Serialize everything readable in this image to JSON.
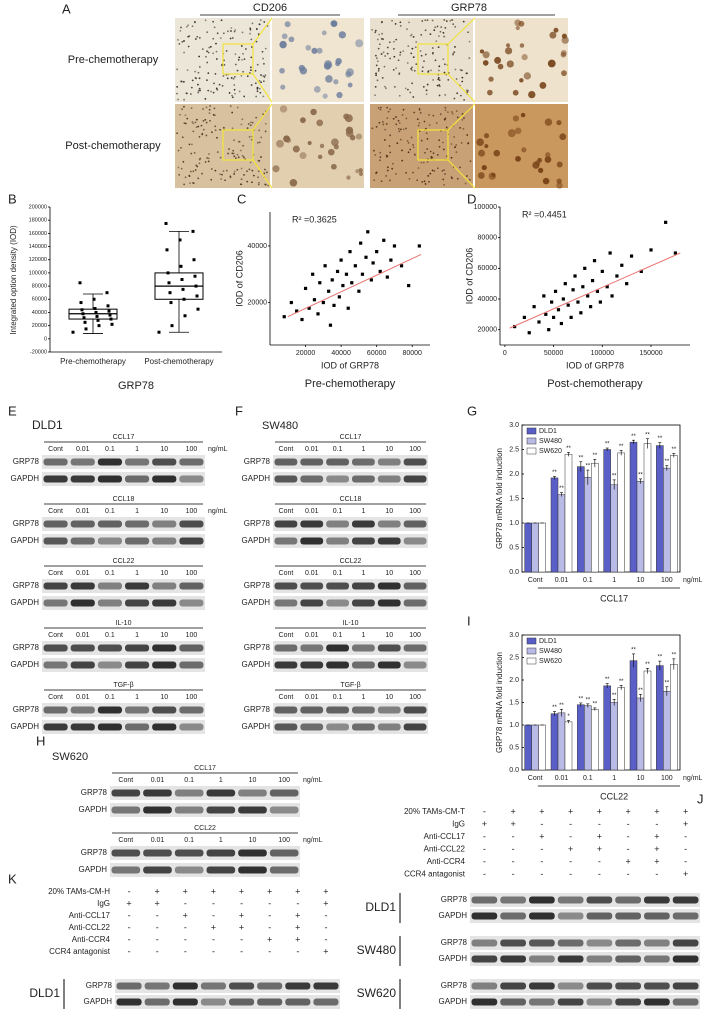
{
  "panel_labels": [
    "A",
    "B",
    "C",
    "D",
    "E",
    "F",
    "G",
    "H",
    "I",
    "J",
    "K"
  ],
  "panel_a": {
    "columns": [
      "CD206",
      "GRP78"
    ],
    "rows": [
      "Pre-chemotherapy",
      "Post-chemotherapy"
    ]
  },
  "chart_data": [
    {
      "type": "box",
      "categories": [
        "Pre-chemotherapy",
        "Post-chemotherapy"
      ],
      "x_label": "GRP78",
      "y_label": "Integrated option density (IOD)",
      "ylim": [
        -20000,
        200000
      ],
      "yticks": [
        -20000,
        0,
        20000,
        40000,
        60000,
        80000,
        100000,
        120000,
        140000,
        160000,
        180000,
        200000
      ],
      "color": "#000000",
      "boxes": [
        {
          "min": 8000,
          "q1": 30000,
          "median": 38000,
          "q3": 45000,
          "max": 68000
        },
        {
          "min": 10000,
          "q1": 60000,
          "median": 80000,
          "q3": 100000,
          "max": 163000
        }
      ],
      "points": [
        [
          10000,
          15000,
          20000,
          22000,
          25000,
          28000,
          30000,
          32000,
          34000,
          36000,
          38000,
          40000,
          42000,
          44000,
          46000,
          50000,
          55000,
          60000,
          70000,
          85000
        ],
        [
          10000,
          20000,
          35000,
          45000,
          55000,
          60000,
          65000,
          70000,
          75000,
          80000,
          85000,
          90000,
          95000,
          100000,
          110000,
          120000,
          135000,
          150000,
          163000,
          175000
        ]
      ]
    },
    {
      "type": "scatter",
      "x_label": "IOD of GRP78",
      "y_label": "IOD of CD206",
      "subtitle": "Pre-chemotherapy",
      "annotation": "R² =0.3625",
      "xlim": [
        0,
        90000
      ],
      "ylim": [
        5000,
        52000
      ],
      "xticks": [
        20000,
        40000,
        60000,
        80000
      ],
      "yticks": [
        20000,
        40000
      ],
      "color": "#000000",
      "x": [
        8000,
        12000,
        15000,
        18000,
        20000,
        22000,
        24000,
        25000,
        27000,
        28000,
        30000,
        31000,
        33000,
        34000,
        35000,
        36000,
        38000,
        39000,
        40000,
        41000,
        43000,
        44000,
        45000,
        46000,
        48000,
        50000,
        51000,
        52000,
        54000,
        55000,
        57000,
        58000,
        60000,
        62000,
        64000,
        66000,
        68000,
        70000,
        74000,
        78000,
        84000
      ],
      "y": [
        15000,
        20000,
        17000,
        14000,
        25000,
        18000,
        30000,
        21000,
        16000,
        27000,
        20000,
        33000,
        24000,
        12000,
        28000,
        19000,
        31000,
        22000,
        35000,
        26000,
        30000,
        18000,
        38000,
        27000,
        33000,
        24000,
        41000,
        30000,
        36000,
        45000,
        28000,
        34000,
        38000,
        31000,
        42000,
        29000,
        35000,
        40000,
        33000,
        26000,
        40000
      ],
      "trendline": {
        "x": [
          10000,
          85000
        ],
        "y": [
          15000,
          37000
        ],
        "color": "#e8736f"
      }
    },
    {
      "type": "scatter",
      "x_label": "IOD of GRP78",
      "y_label": "IOD of CD206",
      "subtitle": "Post-chemotherapy",
      "annotation": "R² =0.4451",
      "xlim": [
        -5000,
        190000
      ],
      "ylim": [
        10000,
        100000
      ],
      "xticks": [
        0,
        50000,
        100000,
        150000
      ],
      "yticks": [
        20000,
        40000,
        60000,
        80000,
        100000
      ],
      "color": "#000000",
      "x": [
        10000,
        20000,
        25000,
        30000,
        35000,
        40000,
        42000,
        45000,
        48000,
        50000,
        52000,
        55000,
        58000,
        60000,
        62000,
        65000,
        68000,
        70000,
        72000,
        75000,
        78000,
        80000,
        82000,
        85000,
        88000,
        90000,
        92000,
        95000,
        98000,
        100000,
        105000,
        108000,
        110000,
        115000,
        120000,
        125000,
        130000,
        140000,
        150000,
        165000,
        175000
      ],
      "y": [
        22000,
        28000,
        18000,
        35000,
        25000,
        42000,
        30000,
        20000,
        38000,
        28000,
        45000,
        33000,
        24000,
        40000,
        50000,
        36000,
        28000,
        46000,
        55000,
        38000,
        31000,
        48000,
        60000,
        42000,
        35000,
        52000,
        65000,
        45000,
        38000,
        58000,
        48000,
        70000,
        42000,
        55000,
        62000,
        50000,
        68000,
        58000,
        72000,
        90000,
        70000
      ],
      "trendline": {
        "x": [
          5000,
          180000
        ],
        "y": [
          21000,
          70000
        ],
        "color": "#e8736f"
      }
    },
    {
      "type": "grouped_bar",
      "y_label": "GRP78 mRNA fold induction",
      "x_label": "CCL17",
      "unit": "ng/mL",
      "legend": "upper left",
      "categories": [
        "Cont",
        "0.01",
        "0.1",
        "1",
        "10",
        "100"
      ],
      "ylim": [
        0,
        3
      ],
      "yticks": [
        {
          "value": 0,
          "label": "0.0"
        },
        0.5,
        {
          "value": 1,
          "label": "1.0"
        },
        1.5,
        {
          "value": 2,
          "label": "2.0"
        },
        2.5,
        {
          "value": 3,
          "label": "3.0"
        }
      ],
      "series": [
        {
          "name": "DLD1",
          "color": "#5a5fc8",
          "values": [
            1,
            1.92,
            2.15,
            2.5,
            2.65,
            2.58
          ],
          "errors": [
            0,
            0.03,
            0.1,
            0.03,
            0.04,
            0.06
          ],
          "significance": [
            null,
            "**",
            "**",
            "**",
            "**",
            "**"
          ]
        },
        {
          "name": "SW480",
          "color": "#b9bbe6",
          "values": [
            1,
            1.58,
            1.93,
            1.78,
            1.85,
            2.12
          ],
          "errors": [
            0,
            0.04,
            0.15,
            0.1,
            0.05,
            0.05
          ],
          "significance": [
            null,
            "**",
            "**",
            "**",
            "**",
            "**"
          ]
        },
        {
          "name": "SW620",
          "color": "#ffffff",
          "values": [
            1,
            2.4,
            2.22,
            2.43,
            2.62,
            2.38
          ],
          "errors": [
            0,
            0.04,
            0.08,
            0.05,
            0.1,
            0.04
          ],
          "significance": [
            null,
            "**",
            "**",
            "**",
            "**",
            "**"
          ]
        }
      ]
    },
    {
      "type": "grouped_bar",
      "y_label": "GRP78 mRNA fold induction",
      "x_label": "CCL22",
      "unit": "ng/mL",
      "legend": "upper left",
      "categories": [
        "Cont",
        "0.01",
        "0.1",
        "1",
        "10",
        "100"
      ],
      "ylim": [
        0,
        3
      ],
      "yticks": [
        {
          "value": 0,
          "label": "0.0"
        },
        0.5,
        {
          "value": 1,
          "label": "1.0"
        },
        1.5,
        {
          "value": 2,
          "label": "2.0"
        },
        2.5,
        {
          "value": 3,
          "label": "3.0"
        }
      ],
      "series": [
        {
          "name": "DLD1",
          "color": "#5a5fc8",
          "values": [
            1,
            1.25,
            1.45,
            1.87,
            2.43,
            2.32
          ],
          "errors": [
            0,
            0.05,
            0.04,
            0.05,
            0.15,
            0.1
          ],
          "significance": [
            null,
            "**",
            "**",
            "**",
            "**",
            "**"
          ]
        },
        {
          "name": "SW480",
          "color": "#b9bbe6",
          "values": [
            1,
            1.27,
            1.43,
            1.5,
            1.6,
            1.75
          ],
          "errors": [
            0,
            0.08,
            0.04,
            0.07,
            0.08,
            0.1
          ],
          "significance": [
            null,
            "**",
            "**",
            "**",
            "**",
            "**"
          ]
        },
        {
          "name": "SW620",
          "color": "#ffffff",
          "values": [
            1,
            1.07,
            1.35,
            1.83,
            2.2,
            2.35
          ],
          "errors": [
            0,
            0.03,
            0.03,
            0.05,
            0.06,
            0.12
          ],
          "significance": [
            null,
            "*",
            "**",
            "**",
            "**",
            "**"
          ]
        }
      ]
    }
  ],
  "blots": {
    "lanes": [
      "Cont",
      "0.01",
      "0.1",
      "1",
      "10",
      "100"
    ],
    "unit": "ng/mL",
    "rows": [
      "GRP78",
      "GAPDH"
    ],
    "E": {
      "cell_line": "DLD1",
      "treatments": [
        "CCL17",
        "CCL18",
        "CCL22",
        "IL-10",
        "TGF-β"
      ]
    },
    "F": {
      "cell_line": "SW480",
      "treatments": [
        "CCL17",
        "CCL18",
        "CCL22",
        "IL-10",
        "TGF-β"
      ]
    },
    "G": {
      "cell_line": "SW620",
      "treatments": [
        "CCL17",
        "CCL22"
      ]
    },
    "J": {
      "cell_lines": [
        "DLD1",
        "SW480",
        "SW620"
      ],
      "treatment_rows": [
        {
          "name": "20% TAMs-CM-T",
          "signs": [
            "-",
            "+",
            "+",
            "+",
            "+",
            "+",
            "+",
            "+"
          ]
        },
        {
          "name": "IgG",
          "signs": [
            "+",
            "+",
            "-",
            "-",
            "-",
            "-",
            "-",
            "+"
          ]
        },
        {
          "name": "Anti-CCL17",
          "signs": [
            "-",
            "-",
            "+",
            "-",
            "+",
            "-",
            "+",
            "-"
          ]
        },
        {
          "name": "Anti-CCL22",
          "signs": [
            "-",
            "-",
            "-",
            "+",
            "+",
            "-",
            "+",
            "-"
          ]
        },
        {
          "name": "Anti-CCR4",
          "signs": [
            "-",
            "-",
            "-",
            "-",
            "-",
            "+",
            "+",
            "-"
          ]
        },
        {
          "name": "CCR4 antagonist",
          "signs": [
            "-",
            "-",
            "-",
            "-",
            "-",
            "-",
            "-",
            "+"
          ]
        }
      ]
    },
    "K": {
      "cell_lines": [
        "DLD1"
      ],
      "treatment_rows": [
        {
          "name": "20% TAMs-CM-H",
          "signs": [
            "-",
            "+",
            "+",
            "+",
            "+",
            "+",
            "+",
            "+"
          ]
        },
        {
          "name": "IgG",
          "signs": [
            "+",
            "+",
            "-",
            "-",
            "-",
            "-",
            "-",
            "+"
          ]
        },
        {
          "name": "Anti-CCL17",
          "signs": [
            "-",
            "-",
            "+",
            "-",
            "+",
            "-",
            "+",
            "-"
          ]
        },
        {
          "name": "Anti-CCL22",
          "signs": [
            "-",
            "-",
            "-",
            "+",
            "+",
            "-",
            "+",
            "-"
          ]
        },
        {
          "name": "Anti-CCR4",
          "signs": [
            "-",
            "-",
            "-",
            "-",
            "-",
            "+",
            "+",
            "-"
          ]
        },
        {
          "name": "CCR4 antagonist",
          "signs": [
            "-",
            "-",
            "-",
            "-",
            "-",
            "-",
            "-",
            "+"
          ]
        }
      ]
    }
  }
}
